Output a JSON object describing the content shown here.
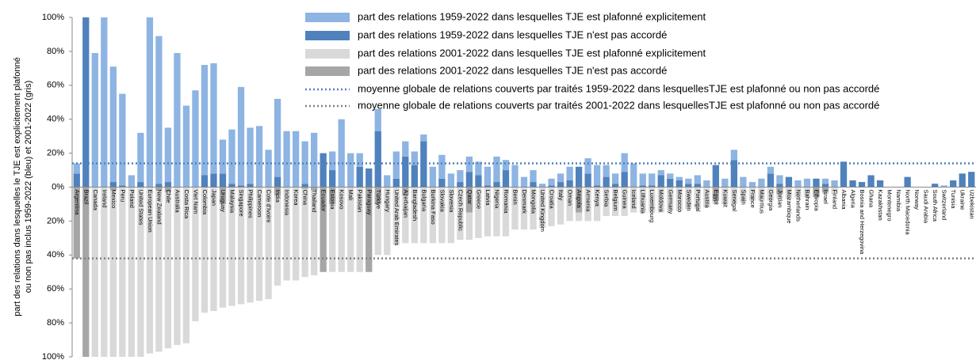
{
  "chart_data": {
    "type": "bar",
    "stacked": true,
    "y_label": [
      "part des relations dans lesquelles le TJE est explicitement plafonné",
      "ou non pas inclus 1959-2022 (bleu) et 2001-2022 (gris)"
    ],
    "categories": [
      "Argentina",
      "Brazil",
      "Canada",
      "Ireland",
      "Mexico",
      "Peru",
      "Poland",
      "United States",
      "European Union",
      "New Zealand",
      "Chile",
      "Australia",
      "Costa Rica",
      "Viet Nam",
      "Colombia",
      "Japan",
      "Uruguay",
      "Malaysia",
      "Singapore",
      "Philippines",
      "Cameroon",
      "Cote d'Ivoire",
      "India",
      "Indonesia",
      "Korea",
      "China",
      "Thailand",
      "Ecuador",
      "Estonia",
      "Kosovo",
      "Mali",
      "Pakistan",
      "Paraguay",
      "Türkiye",
      "Hungary",
      "United Arab Emirates",
      "Azerbaijan",
      "Bangladesh",
      "Bulgaria",
      "Burkina Faso",
      "Slovakia",
      "Slovenia",
      "Czech Republic",
      "Qatar",
      "Greece",
      "Latvia",
      "Nigeria",
      "Romania",
      "Benin",
      "Denmark",
      "Mongolia",
      "United Kingdom",
      "Croatia",
      "Italy",
      "Oman",
      "Angola",
      "Armenia",
      "Kenya",
      "Serbia",
      "Belgium",
      "Guinea",
      "Iceland",
      "Lithuania",
      "Luxembourg",
      "Moldova",
      "Germany",
      "Morocco",
      "Sweden",
      "Portugal",
      "Austria",
      "Egypt",
      "Kuwait",
      "Senegal",
      "Spain",
      "France",
      "Mauritius",
      "Georgia",
      "Jordan",
      "Mozambique",
      "Netherlands",
      "Bahrain",
      "Ethiopia",
      "Israel",
      "Finland",
      "Albania",
      "Algeria",
      "Bosnia and Herzegovina",
      "Ghana",
      "Kazakhstan",
      "Montenegro",
      "Namibia",
      "North Macedonia",
      "Norway",
      "Saudi Arabia",
      "South Africa",
      "Switzerland",
      "Tunisia",
      "Ukraine",
      "Uzbekistan"
    ],
    "series": [
      {
        "name": "part des relations 1959-2022 dans lesquelles TJE est plafonné explicitement",
        "color": "#8db4e2",
        "values": [
          6,
          0,
          79,
          100,
          68,
          54,
          7,
          29,
          100,
          87,
          32,
          79,
          48,
          57,
          65,
          65,
          20,
          32,
          58,
          33,
          36,
          22,
          46,
          33,
          33,
          25,
          32,
          0,
          11,
          40,
          20,
          8,
          0,
          13,
          7,
          16,
          9,
          8,
          4,
          12,
          14,
          8,
          7,
          9,
          8,
          11,
          15,
          6,
          13,
          6,
          7,
          2,
          4,
          5,
          8,
          0,
          9,
          12,
          7,
          6,
          11,
          14,
          7,
          7,
          3,
          3,
          2,
          3,
          5,
          4,
          0,
          5,
          6,
          6,
          3,
          5,
          4,
          5,
          0,
          4,
          5,
          0,
          3,
          4,
          0,
          0,
          0,
          0,
          0,
          0,
          0,
          0,
          0,
          0,
          0,
          1,
          0,
          0,
          0
        ]
      },
      {
        "name": "part des relations 1959-2022 dans lesquelles TJE n'est pas accordé",
        "color": "#4f81bd",
        "values": [
          8,
          100,
          0,
          0,
          3,
          1,
          0,
          3,
          0,
          2,
          3,
          0,
          0,
          0,
          7,
          8,
          8,
          2,
          1,
          2,
          0,
          0,
          6,
          0,
          0,
          2,
          0,
          20,
          10,
          0,
          0,
          12,
          11,
          33,
          0,
          5,
          18,
          13,
          27,
          0,
          5,
          0,
          3,
          9,
          7,
          1,
          3,
          10,
          0,
          0,
          3,
          0,
          1,
          3,
          4,
          12,
          8,
          1,
          6,
          2,
          9,
          0,
          1,
          1,
          7,
          5,
          4,
          2,
          2,
          0,
          13,
          0,
          16,
          0,
          0,
          0,
          8,
          2,
          6,
          0,
          0,
          5,
          2,
          0,
          15,
          4,
          3,
          7,
          4,
          0,
          0,
          6,
          0,
          0,
          2,
          0,
          4,
          8,
          9
        ]
      },
      {
        "name": "part des relations 2001-2022 dans lesquelles TJE est plafonné explicitement",
        "color": "#d9d9d9",
        "values": [
          0,
          0,
          -100,
          -100,
          -98,
          -100,
          -100,
          -100,
          -98,
          -95,
          -92,
          -93,
          -92,
          -79,
          -74,
          -73,
          -61,
          -70,
          -69,
          -68,
          -67,
          -66,
          -53,
          -55,
          -55,
          -52,
          -50,
          0,
          -40,
          -50,
          -50,
          -50,
          0,
          -30,
          -40,
          -34,
          -28,
          -33,
          -33,
          -33,
          -33,
          -33,
          -31,
          -16,
          -30,
          -29,
          -29,
          -29,
          -25,
          -25,
          -25,
          -24,
          -23,
          -22,
          -20,
          -5,
          -20,
          -20,
          -17,
          -17,
          -17,
          -15,
          -15,
          -15,
          -15,
          -14,
          -14,
          -13,
          -13,
          -12,
          -2,
          -10,
          -10,
          -9,
          -8,
          -8,
          -8,
          -3,
          -7,
          -6,
          -6,
          0,
          -1,
          -4,
          0,
          0,
          0,
          0,
          0,
          0,
          0,
          0,
          0,
          0,
          0,
          0,
          0,
          0,
          0
        ]
      },
      {
        "name": "part des relations 2001-2022 dans lesquelles TJE n'est pas accordé",
        "color": "#a6a6a6",
        "values": [
          -42,
          -100,
          0,
          0,
          -2,
          0,
          0,
          0,
          0,
          -2,
          -3,
          0,
          0,
          0,
          0,
          0,
          -10,
          0,
          0,
          0,
          0,
          0,
          -5,
          0,
          0,
          -1,
          -2,
          -50,
          -10,
          0,
          0,
          0,
          -50,
          -10,
          0,
          0,
          -5,
          0,
          0,
          0,
          0,
          0,
          0,
          -15,
          0,
          0,
          0,
          0,
          0,
          0,
          0,
          0,
          0,
          0,
          0,
          -15,
          0,
          0,
          0,
          0,
          0,
          0,
          0,
          0,
          0,
          0,
          0,
          0,
          0,
          0,
          -8,
          0,
          0,
          0,
          0,
          0,
          0,
          -4,
          0,
          0,
          0,
          -6,
          -3,
          0,
          0,
          0,
          0,
          0,
          0,
          0,
          0,
          0,
          0,
          0,
          0,
          0,
          0,
          0,
          0
        ]
      }
    ],
    "reference_lines": [
      {
        "name": "moyenne globale de relations couverts par traités 1959-2022 dans lesquellesTJE est plafonné ou non pas accordé",
        "value": 14,
        "color": "#4f81bd"
      },
      {
        "name": "moyenne globale de relations couverts par traités 2001-2022 dans lesquellesTJE est plafonné ou non pas accordé",
        "value": -42,
        "color": "#7f7f7f"
      }
    ],
    "ylim": [
      -100,
      100
    ],
    "yticks": [
      {
        "value": 100,
        "label": "100%"
      },
      {
        "value": 80,
        "label": "80%"
      },
      {
        "value": 60,
        "label": "60%"
      },
      {
        "value": 40,
        "label": "40%"
      },
      {
        "value": 20,
        "label": "20%"
      },
      {
        "value": 0,
        "label": "0%"
      },
      {
        "value": -20,
        "label": "20%"
      },
      {
        "value": -40,
        "label": "40%"
      },
      {
        "value": -60,
        "label": "60%"
      },
      {
        "value": -80,
        "label": "80%"
      },
      {
        "value": -100,
        "label": "100%"
      }
    ],
    "legend": "top-right"
  }
}
